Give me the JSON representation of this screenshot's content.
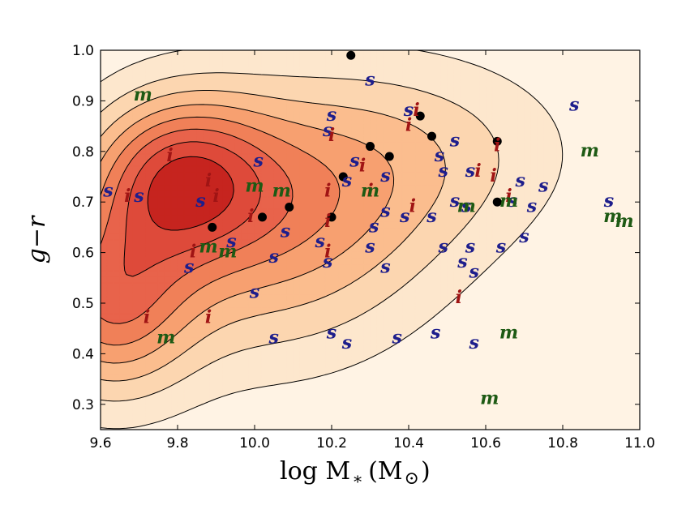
{
  "chart_data": {
    "type": "scatter",
    "title": "",
    "xlabel": "log M",
    "xlabel_sub": "*",
    "xlabel_unit_open": "(M",
    "xlabel_unit_close": ")",
    "ylabel": "g−r",
    "xlim": [
      9.6,
      11.0
    ],
    "ylim": [
      0.25,
      1.0
    ],
    "x_ticks": [
      "9.6",
      "9.8",
      "10.0",
      "10.2",
      "10.4",
      "10.6",
      "10.8",
      "11.0"
    ],
    "y_ticks": [
      "0.3",
      "0.4",
      "0.5",
      "0.6",
      "0.7",
      "0.8",
      "0.9",
      "1.0"
    ],
    "grid": false,
    "contour_fill_colors": [
      "#fff3e4",
      "#fde7cd",
      "#fcd6b0",
      "#fbbd8e",
      "#f7a070",
      "#f08058",
      "#e8634b",
      "#de4a3a",
      "#c6241f"
    ],
    "series": [
      {
        "marker": "dot",
        "color": "#000000",
        "points": [
          [
            10.25,
            0.99
          ],
          [
            10.43,
            0.87
          ],
          [
            10.46,
            0.83
          ],
          [
            10.63,
            0.82
          ],
          [
            10.3,
            0.81
          ],
          [
            10.35,
            0.79
          ],
          [
            10.23,
            0.75
          ],
          [
            10.63,
            0.7
          ],
          [
            10.09,
            0.69
          ],
          [
            10.02,
            0.67
          ],
          [
            10.2,
            0.67
          ],
          [
            9.89,
            0.65
          ]
        ]
      },
      {
        "marker": "s",
        "color": "#1e1e8c",
        "points": [
          [
            10.3,
            0.94
          ],
          [
            10.83,
            0.89
          ],
          [
            10.4,
            0.88
          ],
          [
            10.2,
            0.87
          ],
          [
            10.19,
            0.84
          ],
          [
            10.52,
            0.82
          ],
          [
            10.48,
            0.79
          ],
          [
            10.01,
            0.78
          ],
          [
            10.26,
            0.78
          ],
          [
            10.49,
            0.76
          ],
          [
            10.56,
            0.76
          ],
          [
            10.34,
            0.75
          ],
          [
            10.24,
            0.74
          ],
          [
            10.69,
            0.74
          ],
          [
            10.75,
            0.73
          ],
          [
            9.62,
            0.72
          ],
          [
            9.7,
            0.71
          ],
          [
            9.86,
            0.7
          ],
          [
            10.52,
            0.7
          ],
          [
            10.55,
            0.69
          ],
          [
            10.67,
            0.7
          ],
          [
            10.72,
            0.69
          ],
          [
            10.92,
            0.7
          ],
          [
            10.34,
            0.68
          ],
          [
            10.39,
            0.67
          ],
          [
            10.46,
            0.67
          ],
          [
            10.31,
            0.65
          ],
          [
            10.08,
            0.64
          ],
          [
            10.17,
            0.62
          ],
          [
            10.3,
            0.61
          ],
          [
            9.94,
            0.62
          ],
          [
            10.49,
            0.61
          ],
          [
            10.56,
            0.61
          ],
          [
            10.64,
            0.61
          ],
          [
            10.7,
            0.63
          ],
          [
            10.05,
            0.59
          ],
          [
            10.19,
            0.58
          ],
          [
            10.34,
            0.57
          ],
          [
            10.54,
            0.58
          ],
          [
            10.57,
            0.56
          ],
          [
            9.83,
            0.57
          ],
          [
            10.0,
            0.52
          ],
          [
            10.2,
            0.44
          ],
          [
            10.05,
            0.43
          ],
          [
            10.47,
            0.44
          ],
          [
            10.57,
            0.42
          ],
          [
            10.37,
            0.43
          ],
          [
            10.24,
            0.42
          ]
        ]
      },
      {
        "marker": "i",
        "color": "#a01414",
        "points": [
          [
            10.42,
            0.88
          ],
          [
            10.4,
            0.85
          ],
          [
            10.2,
            0.83
          ],
          [
            10.63,
            0.81
          ],
          [
            9.78,
            0.79
          ],
          [
            10.28,
            0.77
          ],
          [
            10.58,
            0.76
          ],
          [
            10.62,
            0.75
          ],
          [
            9.88,
            0.74
          ],
          [
            10.19,
            0.72
          ],
          [
            10.3,
            0.72
          ],
          [
            10.41,
            0.69
          ],
          [
            10.66,
            0.71
          ],
          [
            9.67,
            0.71
          ],
          [
            9.9,
            0.71
          ],
          [
            9.99,
            0.67
          ],
          [
            10.19,
            0.66
          ],
          [
            9.84,
            0.6
          ],
          [
            10.19,
            0.6
          ],
          [
            10.53,
            0.51
          ],
          [
            9.72,
            0.47
          ],
          [
            9.88,
            0.47
          ]
        ]
      },
      {
        "marker": "m",
        "color": "#1e5a14",
        "points": [
          [
            9.71,
            0.91
          ],
          [
            10.87,
            0.8
          ],
          [
            10.0,
            0.73
          ],
          [
            10.07,
            0.72
          ],
          [
            10.3,
            0.72
          ],
          [
            10.55,
            0.69
          ],
          [
            10.66,
            0.7
          ],
          [
            10.93,
            0.67
          ],
          [
            10.96,
            0.66
          ],
          [
            9.88,
            0.61
          ],
          [
            9.93,
            0.6
          ],
          [
            10.66,
            0.44
          ],
          [
            9.77,
            0.43
          ],
          [
            10.61,
            0.31
          ]
        ]
      }
    ],
    "density_peaks": [
      {
        "x": 9.8,
        "y": 0.75,
        "sx": 0.16,
        "sy": 0.11,
        "a": 1.0
      },
      {
        "x": 9.62,
        "y": 0.5,
        "sx": 0.15,
        "sy": 0.13,
        "a": 0.95
      },
      {
        "x": 10.05,
        "y": 0.72,
        "sx": 0.28,
        "sy": 0.16,
        "a": 0.55
      },
      {
        "x": 10.35,
        "y": 0.78,
        "sx": 0.3,
        "sy": 0.15,
        "a": 0.3
      },
      {
        "x": 10.0,
        "y": 0.55,
        "sx": 0.3,
        "sy": 0.16,
        "a": 0.35
      },
      {
        "x": 10.55,
        "y": 0.82,
        "sx": 0.25,
        "sy": 0.12,
        "a": 0.12
      }
    ]
  }
}
